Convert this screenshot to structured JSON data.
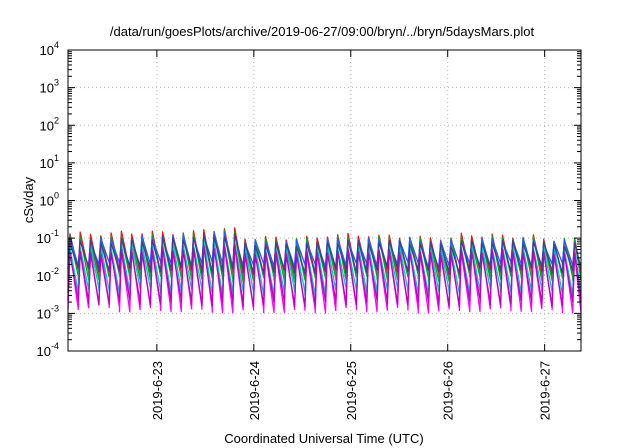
{
  "chart_data": {
    "type": "line",
    "title": "/data/run/goesPlots/archive/2019-06-27/09:00/bryn/../bryn/5daysMars.plot",
    "xlabel": "Coordinated Universal Time (UTC)",
    "ylabel": "cSv/day",
    "yscale": "log",
    "ylim": [
      0.0001,
      10000
    ],
    "y_ticks": [
      {
        "base": "10",
        "exp": "-4",
        "value": 0.0001
      },
      {
        "base": "10",
        "exp": "-3",
        "value": 0.001
      },
      {
        "base": "10",
        "exp": "-2",
        "value": 0.01
      },
      {
        "base": "10",
        "exp": "-1",
        "value": 0.1
      },
      {
        "base": "10",
        "exp": "0",
        "value": 1
      },
      {
        "base": "10",
        "exp": "1",
        "value": 10
      },
      {
        "base": "10",
        "exp": "2",
        "value": 100
      },
      {
        "base": "10",
        "exp": "3",
        "value": 1000
      },
      {
        "base": "10",
        "exp": "4",
        "value": 10000
      }
    ],
    "xlim": [
      "2019-06-22 02:00",
      "2019-06-27 09:00"
    ],
    "x_ticks": [
      {
        "label": "2019-6-23",
        "value": "2019-06-23 00:00"
      },
      {
        "label": "2019-6-24",
        "value": "2019-06-24 00:00"
      },
      {
        "label": "2019-6-25",
        "value": "2019-06-25 00:00"
      },
      {
        "label": "2019-6-26",
        "value": "2019-06-26 00:00"
      },
      {
        "label": "2019-6-27",
        "value": "2019-06-27 00:00"
      }
    ],
    "grid": true,
    "sawtooth_period_hours": 2.55,
    "series": [
      {
        "color": "#e41a1c",
        "peaks": [
          0.13,
          0.14,
          0.14,
          0.17,
          0.1,
          0.1,
          0.12,
          0.11,
          0.1,
          0.12,
          0.11,
          0.09
        ],
        "troughs": [
          0.013,
          0.012,
          0.012,
          0.011,
          0.011,
          0.011,
          0.012,
          0.012,
          0.011,
          0.012,
          0.012,
          0.011
        ]
      },
      {
        "color": "#00b000",
        "peaks": [
          0.1,
          0.11,
          0.12,
          0.14,
          0.09,
          0.09,
          0.1,
          0.1,
          0.09,
          0.1,
          0.1,
          0.09
        ],
        "troughs": [
          0.009,
          0.009,
          0.009,
          0.008,
          0.008,
          0.008,
          0.009,
          0.009,
          0.008,
          0.009,
          0.009,
          0.008
        ]
      },
      {
        "color": "#2060ff",
        "peaks": [
          0.09,
          0.1,
          0.11,
          0.13,
          0.08,
          0.08,
          0.09,
          0.09,
          0.08,
          0.09,
          0.09,
          0.08
        ],
        "troughs": [
          0.02,
          0.02,
          0.02,
          0.02,
          0.018,
          0.018,
          0.019,
          0.02,
          0.018,
          0.02,
          0.02,
          0.019
        ]
      },
      {
        "color": "#ff00ff",
        "peaks": [
          0.05,
          0.05,
          0.06,
          0.07,
          0.045,
          0.045,
          0.05,
          0.05,
          0.045,
          0.05,
          0.05,
          0.045
        ],
        "troughs": [
          0.0015,
          0.0013,
          0.0013,
          0.0012,
          0.0012,
          0.0012,
          0.0013,
          0.0013,
          0.0012,
          0.0013,
          0.0013,
          0.0012
        ]
      },
      {
        "color": "#00c8c8",
        "peaks": [
          0.06,
          0.07,
          0.07,
          0.08,
          0.055,
          0.055,
          0.06,
          0.06,
          0.055,
          0.06,
          0.06,
          0.055
        ],
        "troughs": [
          0.004,
          0.004,
          0.004,
          0.0035,
          0.0035,
          0.0035,
          0.004,
          0.004,
          0.0035,
          0.004,
          0.004,
          0.0035
        ]
      },
      {
        "color": "#404090",
        "peaks": [
          0.08,
          0.09,
          0.1,
          0.12,
          0.07,
          0.07,
          0.08,
          0.08,
          0.07,
          0.08,
          0.08,
          0.07
        ],
        "troughs": [
          0.015,
          0.015,
          0.015,
          0.014,
          0.013,
          0.013,
          0.014,
          0.015,
          0.013,
          0.015,
          0.015,
          0.014
        ]
      },
      {
        "color": "#c000c0",
        "peaks": [
          0.04,
          0.045,
          0.05,
          0.06,
          0.04,
          0.04,
          0.045,
          0.045,
          0.04,
          0.045,
          0.045,
          0.04
        ],
        "troughs": [
          0.002,
          0.002,
          0.002,
          0.0018,
          0.0018,
          0.0018,
          0.002,
          0.002,
          0.0018,
          0.002,
          0.002,
          0.0018
        ]
      }
    ]
  }
}
